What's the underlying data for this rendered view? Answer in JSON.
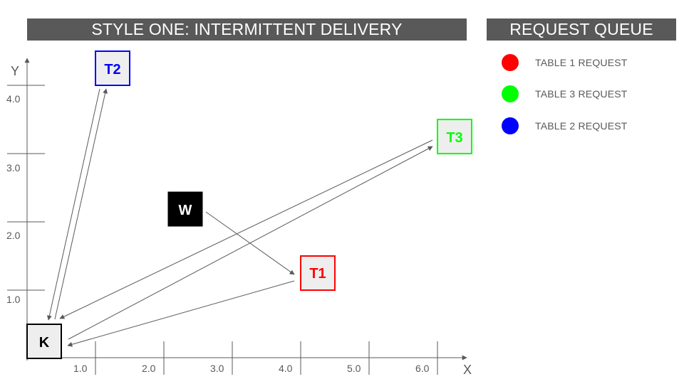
{
  "title": "STYLE ONE: INTERMITTENT DELIVERY",
  "queue": {
    "title": "REQUEST QUEUE",
    "items": [
      {
        "label": "TABLE 1 REQUEST",
        "color": "#ff0000"
      },
      {
        "label": "TABLE 3 REQUEST",
        "color": "#00ff00"
      },
      {
        "label": "TABLE 2 REQUEST",
        "color": "#0000ff"
      }
    ]
  },
  "axes": {
    "x_name": "X",
    "y_name": "Y",
    "x_ticks": [
      "1.0",
      "2.0",
      "3.0",
      "4.0",
      "5.0",
      "6.0"
    ],
    "y_ticks": [
      "1.0",
      "2.0",
      "3.0",
      "4.0"
    ]
  },
  "nodes": {
    "k": {
      "label": "K",
      "text_color": "#000000",
      "border": "#000000",
      "fill": "#eeeeee"
    },
    "w": {
      "label": "W",
      "text_color": "#ffffff",
      "border": "#000000",
      "fill": "#000000"
    },
    "t1": {
      "label": "T1",
      "text_color": "#ff0000",
      "border": "#ff0000",
      "fill": "#eeeeee"
    },
    "t2": {
      "label": "T2",
      "text_color": "#0000ff",
      "border": "#0000ff",
      "fill": "#eeeeee"
    },
    "t3": {
      "label": "T3",
      "text_color": "#00ff00",
      "border": "#00ff00",
      "fill": "#eeeeee"
    }
  },
  "colors": {
    "banner": "#595959",
    "axis": "#595959",
    "arrow": "#595959"
  }
}
